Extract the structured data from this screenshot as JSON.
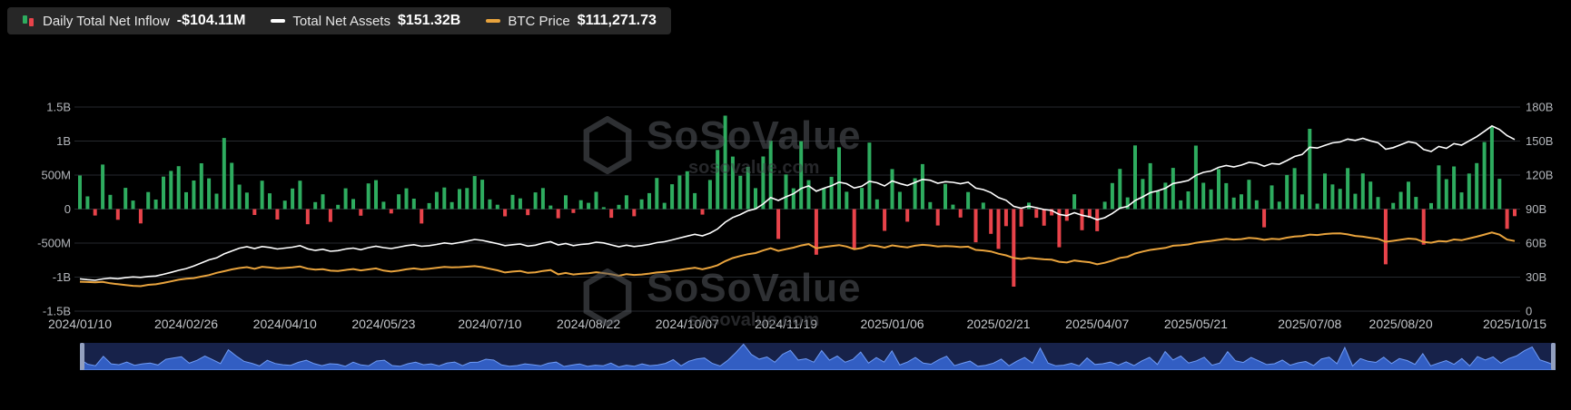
{
  "legend": {
    "items": [
      {
        "label": "Daily Total Net Inflow",
        "value": "-$104.11M",
        "icon": "inflow-bars-icon"
      },
      {
        "label": "Total Net Assets",
        "value": "$151.32B",
        "icon": "white-line-icon"
      },
      {
        "label": "BTC Price",
        "value": "$111,271.73",
        "icon": "orange-line-icon"
      }
    ]
  },
  "watermark": {
    "brand": "SoSoValue",
    "domain": "sosovalue.com"
  },
  "theme": {
    "background": "#000000",
    "grid": "#26292e",
    "axis_text": "#b4b7bc",
    "x_axis_text": "#c3c6ca",
    "green": "#2eac5f",
    "red": "#e8434a",
    "white_line": "#ffffff",
    "orange_line": "#e8a33d",
    "navigator_bg": "#17224a",
    "navigator_fill": "#3565d0",
    "navigator_stroke": "#6f9bf5",
    "navigator_handle": "#93a0bf"
  },
  "axes": {
    "left_ticks": [
      "1.5B",
      "1B",
      "500M",
      "0",
      "-500M",
      "-1B",
      "-1.5B"
    ],
    "right_ticks": [
      "180B",
      "150B",
      "120B",
      "90B",
      "60B",
      "30B",
      "0"
    ],
    "x_ticks": [
      "2024/01/10",
      "2024/02/26",
      "2024/04/10",
      "2024/05/23",
      "2024/07/10",
      "2024/08/22",
      "2024/10/07",
      "2024/11/19",
      "2025/01/06",
      "2025/02/21",
      "2025/04/07",
      "2025/05/21",
      "2025/07/08",
      "2025/08/20",
      "2025/10/15"
    ]
  },
  "chart_data": {
    "type": "bar",
    "title": "",
    "x_range": [
      "2024/01/10",
      "2025/10/15"
    ],
    "x_tick_labels": [
      "2024/01/10",
      "2024/02/26",
      "2024/04/10",
      "2024/05/23",
      "2024/07/10",
      "2024/08/22",
      "2024/10/07",
      "2024/11/19",
      "2025/01/06",
      "2025/02/21",
      "2025/04/07",
      "2025/05/21",
      "2025/07/08",
      "2025/08/20",
      "2025/10/15"
    ],
    "x_tick_indices": [
      0,
      14,
      27,
      40,
      54,
      67,
      80,
      93,
      107,
      121,
      134,
      147,
      162,
      174,
      189
    ],
    "left_axis": {
      "min": -1500,
      "max": 1500,
      "unit": "M"
    },
    "right_axis": {
      "min": 0,
      "max": 180,
      "unit": "B"
    },
    "btc_axis_max_k": 324,
    "grid": true,
    "legend_position": "top-left",
    "series": [
      {
        "name": "Daily Total Net Inflow",
        "type": "bar",
        "axis": "left",
        "unit": "$M",
        "positive_color": "#2eac5f",
        "negative_color": "#e8434a",
        "latest": -104.11,
        "values": [
          494,
          187,
          -95,
          655,
          210,
          -158,
          312,
          125,
          -210,
          251,
          140,
          478,
          561,
          631,
          248,
          420,
          673,
          452,
          226,
          1045,
          680,
          360,
          243,
          -86,
          418,
          232,
          -154,
          124,
          302,
          418,
          -223,
          103,
          217,
          -188,
          62,
          305,
          148,
          -97,
          378,
          425,
          108,
          -64,
          217,
          305,
          154,
          -212,
          88,
          252,
          317,
          102,
          295,
          310,
          486,
          432,
          143,
          64,
          -107,
          210,
          158,
          -89,
          245,
          310,
          52,
          -135,
          202,
          -58,
          131,
          92,
          254,
          28,
          -128,
          63,
          202,
          -105,
          142,
          235,
          458,
          92,
          365,
          494,
          556,
          235,
          -81,
          428,
          870,
          1374,
          772,
          490,
          621,
          308,
          773,
          1005,
          -438,
          510,
          305,
          998,
          425,
          -671,
          308,
          475,
          908,
          255,
          -582,
          312,
          978,
          142,
          -320,
          588,
          254,
          -186,
          453,
          661,
          102,
          -242,
          370,
          66,
          -124,
          251,
          -488,
          94,
          -364,
          -585,
          -251,
          -1140,
          -258,
          94,
          -128,
          -244,
          -94,
          -561,
          -172,
          218,
          -310,
          -128,
          -326,
          108,
          382,
          591,
          172,
          936,
          442,
          675,
          260,
          388,
          605,
          128,
          260,
          934,
          386,
          290,
          588,
          381,
          169,
          217,
          431,
          129,
          -268,
          348,
          110,
          501,
          602,
          216,
          1180,
          80,
          522,
          363,
          297,
          602,
          225,
          524,
          404,
          178,
          -812,
          91,
          253,
          403,
          179,
          -523,
          88,
          642,
          440,
          627,
          245,
          522,
          676,
          985,
          1210,
          446,
          -290,
          -104
        ]
      },
      {
        "name": "Total Net Assets",
        "type": "line",
        "axis": "right",
        "unit": "$B",
        "color": "#ffffff",
        "latest": 151.32,
        "values": [
          28.5,
          27.8,
          27.2,
          28.4,
          29.1,
          28.6,
          29.5,
          30.2,
          29.8,
          30.6,
          31.0,
          32.5,
          34.2,
          36.0,
          37.5,
          39.8,
          42.5,
          45.2,
          47.0,
          50.5,
          53.0,
          55.5,
          56.8,
          55.2,
          57.0,
          56.2,
          54.8,
          55.6,
          56.4,
          57.8,
          55.0,
          53.5,
          54.6,
          52.8,
          53.4,
          54.8,
          55.6,
          54.2,
          56.0,
          57.2,
          56.0,
          55.2,
          56.4,
          57.8,
          58.6,
          57.2,
          57.8,
          58.8,
          60.2,
          59.4,
          60.5,
          61.8,
          63.2,
          62.4,
          61.0,
          59.5,
          57.8,
          58.6,
          59.2,
          57.4,
          58.2,
          60.0,
          61.2,
          58.4,
          59.6,
          57.8,
          58.8,
          59.4,
          60.8,
          60.2,
          58.4,
          56.8,
          58.2,
          57.0,
          57.8,
          58.8,
          60.4,
          61.2,
          62.8,
          64.5,
          66.2,
          67.8,
          66.4,
          68.8,
          72.5,
          78.4,
          82.6,
          85.2,
          88.6,
          90.2,
          94.5,
          100.2,
          97.6,
          100.8,
          103.5,
          108.2,
          110.5,
          105.8,
          108.4,
          110.6,
          113.8,
          112.4,
          108.6,
          110.2,
          114.6,
          113.2,
          110.4,
          114.8,
          112.6,
          110.8,
          113.5,
          116.2,
          115.4,
          112.8,
          114.2,
          113.6,
          112.4,
          113.8,
          108.5,
          107.2,
          104.6,
          100.2,
          97.8,
          92.4,
          90.8,
          92.6,
          91.2,
          89.6,
          88.8,
          85.4,
          84.2,
          86.8,
          84.6,
          83.2,
          80.6,
          82.4,
          86.2,
          90.8,
          92.4,
          97.6,
          100.8,
          104.5,
          106.2,
          108.4,
          112.6,
          113.8,
          115.2,
          119.8,
          122.4,
          123.6,
          126.8,
          128.4,
          127.2,
          128.8,
          131.2,
          130.4,
          127.8,
          130.2,
          129.6,
          132.8,
          136.4,
          138.2,
          144.6,
          143.8,
          146.2,
          148.4,
          149.2,
          151.8,
          150.6,
          152.4,
          150.2,
          148.6,
          142.8,
          144.2,
          146.8,
          149.4,
          148.2,
          142.6,
          140.8,
          145.2,
          143.6,
          147.8,
          146.4,
          150.2,
          153.8,
          158.6,
          163.4,
          160.2,
          154.8,
          151.32
        ]
      },
      {
        "name": "BTC Price",
        "type": "line",
        "axis": "hidden",
        "unit": "$K",
        "color": "#e8a33d",
        "latest": 111.27173,
        "values": [
          46.6,
          46.2,
          45.8,
          46.4,
          44.2,
          42.8,
          41.5,
          40.2,
          39.6,
          41.8,
          42.6,
          44.8,
          47.2,
          49.8,
          51.6,
          52.4,
          54.8,
          57.2,
          60.8,
          63.4,
          66.2,
          68.4,
          69.8,
          67.2,
          70.4,
          69.2,
          67.8,
          68.6,
          69.4,
          70.8,
          67.4,
          65.8,
          66.6,
          64.2,
          63.8,
          65.4,
          66.8,
          64.6,
          66.2,
          67.8,
          64.4,
          62.8,
          64.2,
          66.4,
          67.8,
          66.2,
          67.4,
          68.8,
          70.2,
          69.4,
          69.8,
          70.6,
          71.4,
          69.8,
          67.2,
          64.8,
          61.4,
          62.8,
          63.6,
          60.8,
          61.6,
          63.8,
          65.2,
          58.4,
          60.6,
          58.2,
          59.4,
          60.2,
          61.8,
          60.4,
          58.6,
          56.2,
          58.8,
          57.4,
          58.2,
          59.6,
          61.4,
          62.2,
          63.8,
          65.4,
          67.2,
          68.8,
          66.4,
          69.2,
          72.8,
          79.4,
          84.2,
          87.6,
          90.4,
          92.2,
          96.4,
          99.8,
          95.6,
          98.4,
          100.8,
          104.2,
          106.4,
          99.8,
          101.6,
          103.4,
          104.8,
          102.6,
          98.4,
          100.2,
          104.6,
          103.2,
          100.8,
          104.4,
          102.6,
          101.2,
          103.8,
          105.2,
          104.4,
          102.6,
          103.4,
          102.8,
          101.6,
          102.4,
          97.2,
          96.4,
          94.8,
          91.2,
          88.6,
          84.4,
          82.8,
          84.6,
          83.4,
          82.2,
          81.6,
          78.4,
          77.2,
          80.4,
          78.8,
          77.6,
          74.4,
          76.8,
          80.2,
          84.6,
          86.2,
          91.4,
          94.6,
          97.2,
          98.8,
          100.4,
          103.8,
          104.6,
          105.8,
          108.4,
          110.2,
          111.4,
          113.2,
          114.8,
          113.6,
          114.4,
          116.2,
          115.4,
          113.2,
          114.8,
          114.2,
          116.6,
          118.4,
          119.2,
          121.6,
          120.8,
          122.4,
          123.2,
          123.6,
          121.8,
          119.4,
          118.2,
          116.4,
          114.8,
          110.2,
          111.6,
          113.4,
          115.2,
          114.4,
          109.8,
          108.6,
          111.2,
          110.4,
          113.8,
          112.6,
          115.4,
          118.2,
          121.6,
          124.8,
          121.4,
          113.6,
          111.27
        ]
      }
    ]
  }
}
